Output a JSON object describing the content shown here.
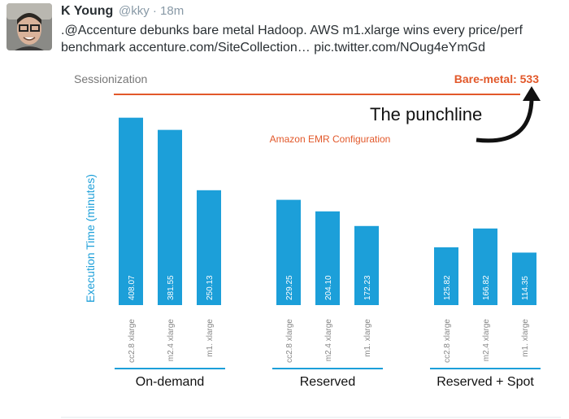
{
  "tweet": {
    "name": "K Young",
    "meta": "@kky · 18m",
    "lines": [
      ".@Accenture debunks bare metal Hadoop. AWS m1.xlarge wins every price/perf",
      "benchmark accenture.com/SiteCollection… pic.twitter.com/NOug4eYmGd"
    ]
  },
  "chart_data": {
    "type": "bar",
    "title": "Sessionization",
    "subtitle": "Amazon EMR Configuration",
    "y_label": "Execution Time (minutes)",
    "annotation": "The punchline",
    "reference_label": "Bare-metal: 533",
    "reference_value": 533,
    "reference_color": "#e2582a",
    "color": "#1c9fd9",
    "ylim": [
      0,
      450
    ],
    "groups": [
      {
        "name": "On-demand",
        "categories": [
          "cc2.8 xlarge",
          "m2.4 xlarge",
          "m1. xlarge"
        ],
        "values": [
          408.07,
          381.55,
          250.13
        ],
        "value_labels": [
          "408.07",
          "381.55",
          "250.13"
        ]
      },
      {
        "name": "Reserved",
        "categories": [
          "cc2.8 xlarge",
          "m2.4 xlarge",
          "m1. xlarge"
        ],
        "values": [
          229.25,
          204.1,
          172.23
        ],
        "value_labels": [
          "229.25",
          "204.10",
          "172.23"
        ]
      },
      {
        "name": "Reserved + Spot",
        "categories": [
          "cc2.8 xlarge",
          "m2.4 xlarge",
          "m1. xlarge"
        ],
        "values": [
          125.82,
          166.82,
          114.35
        ],
        "value_labels": [
          "125.82",
          "166.82",
          "114.35"
        ]
      }
    ]
  }
}
